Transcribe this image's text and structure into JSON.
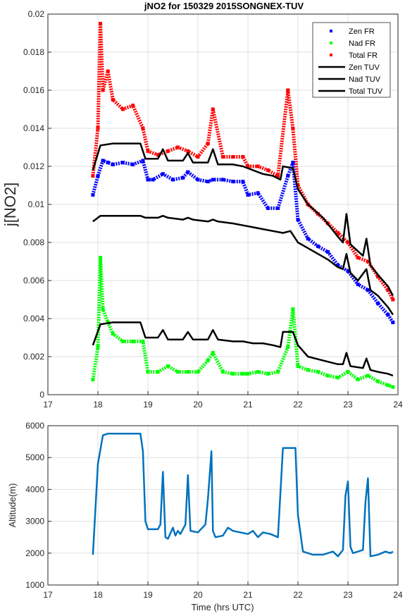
{
  "colors": {
    "zen_fr": "#0000ff",
    "nad_fr": "#00ff00",
    "total_fr": "#ff0000",
    "tuv": "#000000",
    "altitude": "#0072bd",
    "grid": "#dfdfdf",
    "axis": "#262626"
  },
  "chart_data": [
    {
      "type": "scatter",
      "title": "jNO2 for 150329 2015SONGNEX-TUV",
      "xlabel": "",
      "ylabel": "j[NO2]",
      "xlim": [
        17,
        24
      ],
      "ylim": [
        0,
        0.02
      ],
      "x_ticks": [
        "17",
        "18",
        "19",
        "20",
        "21",
        "22",
        "23",
        "24"
      ],
      "y_ticks": [
        "0",
        "0.002",
        "0.004",
        "0.006",
        "0.008",
        "0.01",
        "0.012",
        "0.014",
        "0.016",
        "0.018",
        "0.02"
      ],
      "grid": true,
      "legend_position": "top-right",
      "legend": [
        "Zen FR",
        "Nad FR",
        "Total FR",
        "Zen TUV",
        "Nad TUV",
        "Total TUV"
      ],
      "series": [
        {
          "name": "Zen FR",
          "kind": "points",
          "x": [
            17.9,
            18.0,
            18.1,
            18.2,
            18.3,
            18.5,
            18.7,
            18.9,
            19.0,
            19.1,
            19.3,
            19.5,
            19.7,
            19.8,
            20.0,
            20.2,
            20.3,
            20.5,
            20.7,
            20.9,
            21.0,
            21.2,
            21.4,
            21.6,
            21.8,
            21.9,
            22.0,
            22.2,
            22.4,
            22.6,
            22.8,
            23.0,
            23.2,
            23.4,
            23.6,
            23.8,
            23.9
          ],
          "y": [
            0.0105,
            0.0115,
            0.0123,
            0.0122,
            0.0121,
            0.0122,
            0.0121,
            0.0123,
            0.0113,
            0.0113,
            0.0116,
            0.0113,
            0.0114,
            0.0117,
            0.0113,
            0.0112,
            0.0113,
            0.0113,
            0.0112,
            0.0112,
            0.0105,
            0.0106,
            0.0098,
            0.0098,
            0.0115,
            0.0122,
            0.0092,
            0.0082,
            0.0078,
            0.0075,
            0.0068,
            0.0065,
            0.0058,
            0.0055,
            0.0048,
            0.0042,
            0.0038
          ]
        },
        {
          "name": "Nad FR",
          "kind": "points",
          "x": [
            17.9,
            18.0,
            18.05,
            18.1,
            18.2,
            18.3,
            18.5,
            18.7,
            18.9,
            19.0,
            19.2,
            19.4,
            19.6,
            19.8,
            20.0,
            20.2,
            20.3,
            20.5,
            20.7,
            20.9,
            21.0,
            21.2,
            21.4,
            21.6,
            21.8,
            21.9,
            22.0,
            22.2,
            22.4,
            22.6,
            22.8,
            23.0,
            23.2,
            23.4,
            23.6,
            23.8,
            23.9
          ],
          "y": [
            0.0008,
            0.0025,
            0.0072,
            0.0045,
            0.0038,
            0.0032,
            0.0028,
            0.0028,
            0.0028,
            0.0012,
            0.0012,
            0.0015,
            0.0012,
            0.0012,
            0.0012,
            0.0018,
            0.0022,
            0.0012,
            0.0011,
            0.0011,
            0.0011,
            0.0012,
            0.0011,
            0.0012,
            0.0025,
            0.0045,
            0.0015,
            0.0013,
            0.0012,
            0.001,
            0.0009,
            0.0012,
            0.0008,
            0.001,
            0.0007,
            0.0005,
            0.0004
          ]
        },
        {
          "name": "Total FR",
          "kind": "points",
          "x": [
            17.9,
            18.0,
            18.05,
            18.1,
            18.2,
            18.3,
            18.5,
            18.7,
            18.9,
            19.0,
            19.2,
            19.4,
            19.6,
            19.8,
            20.0,
            20.2,
            20.3,
            20.5,
            20.7,
            20.9,
            21.0,
            21.2,
            21.4,
            21.6,
            21.8,
            21.9,
            22.0,
            22.2,
            22.4,
            22.6,
            22.8,
            23.0,
            23.2,
            23.4,
            23.6,
            23.8,
            23.9
          ],
          "y": [
            0.0115,
            0.014,
            0.0195,
            0.016,
            0.017,
            0.0155,
            0.015,
            0.0152,
            0.014,
            0.0128,
            0.0126,
            0.0128,
            0.013,
            0.0128,
            0.0125,
            0.0132,
            0.015,
            0.0125,
            0.0125,
            0.0125,
            0.012,
            0.012,
            0.0118,
            0.0115,
            0.016,
            0.014,
            0.011,
            0.01,
            0.0095,
            0.009,
            0.0085,
            0.008,
            0.0072,
            0.007,
            0.0062,
            0.0055,
            0.005
          ]
        },
        {
          "name": "Zen TUV",
          "kind": "line",
          "x": [
            17.9,
            18.05,
            18.3,
            18.7,
            18.85,
            18.95,
            19.2,
            19.3,
            19.4,
            19.7,
            19.8,
            19.9,
            20.2,
            20.3,
            20.4,
            20.7,
            20.9,
            21.1,
            21.3,
            21.5,
            21.7,
            21.85,
            22.0,
            22.2,
            22.4,
            22.6,
            22.8,
            22.9,
            22.97,
            23.05,
            23.2,
            23.37,
            23.45,
            23.6,
            23.8,
            23.9
          ],
          "y": [
            0.0091,
            0.0094,
            0.0094,
            0.0094,
            0.0094,
            0.0093,
            0.0093,
            0.0094,
            0.0093,
            0.0092,
            0.0093,
            0.0092,
            0.0091,
            0.0092,
            0.0091,
            0.009,
            0.0089,
            0.0088,
            0.0087,
            0.0086,
            0.0085,
            0.0086,
            0.008,
            0.0077,
            0.0074,
            0.0071,
            0.0067,
            0.0066,
            0.0074,
            0.0064,
            0.006,
            0.0066,
            0.0055,
            0.0052,
            0.0046,
            0.0042
          ]
        },
        {
          "name": "Nad TUV",
          "kind": "line",
          "x": [
            17.9,
            18.05,
            18.3,
            18.85,
            18.95,
            19.2,
            19.3,
            19.4,
            19.7,
            19.8,
            19.9,
            20.2,
            20.3,
            20.4,
            20.7,
            20.9,
            21.1,
            21.3,
            21.5,
            21.65,
            21.7,
            21.9,
            22.0,
            22.2,
            22.5,
            22.8,
            22.9,
            22.97,
            23.05,
            23.3,
            23.37,
            23.45,
            23.6,
            23.8,
            23.9
          ],
          "y": [
            0.0026,
            0.0037,
            0.0038,
            0.0038,
            0.003,
            0.003,
            0.0034,
            0.0029,
            0.0029,
            0.0033,
            0.0029,
            0.0029,
            0.0034,
            0.0029,
            0.0028,
            0.0028,
            0.0027,
            0.0027,
            0.0026,
            0.0025,
            0.0033,
            0.0033,
            0.0026,
            0.002,
            0.0018,
            0.0016,
            0.0016,
            0.0022,
            0.0015,
            0.0014,
            0.0019,
            0.0013,
            0.0012,
            0.0011,
            0.001
          ]
        },
        {
          "name": "Total TUV",
          "kind": "line",
          "x": [
            17.9,
            18.05,
            18.3,
            18.85,
            18.95,
            19.2,
            19.3,
            19.4,
            19.7,
            19.8,
            19.9,
            20.2,
            20.3,
            20.4,
            20.7,
            20.9,
            21.1,
            21.3,
            21.5,
            21.65,
            21.7,
            21.9,
            22.0,
            22.2,
            22.5,
            22.8,
            22.9,
            22.97,
            23.05,
            23.3,
            23.37,
            23.45,
            23.6,
            23.8,
            23.9
          ],
          "y": [
            0.0118,
            0.0131,
            0.0132,
            0.0132,
            0.0124,
            0.0124,
            0.0129,
            0.0123,
            0.0123,
            0.0127,
            0.0122,
            0.0122,
            0.0129,
            0.0121,
            0.0121,
            0.012,
            0.0118,
            0.0116,
            0.0115,
            0.0113,
            0.012,
            0.0119,
            0.0108,
            0.01,
            0.0093,
            0.0083,
            0.008,
            0.0095,
            0.0079,
            0.0073,
            0.0082,
            0.0068,
            0.0063,
            0.0057,
            0.0052
          ]
        }
      ]
    },
    {
      "type": "line",
      "title": "",
      "xlabel": "Time (hrs UTC)",
      "ylabel": "Altitude(m)",
      "xlim": [
        17,
        24
      ],
      "ylim": [
        1000,
        6000
      ],
      "x_ticks": [
        "17",
        "18",
        "19",
        "20",
        "21",
        "22",
        "23",
        "24"
      ],
      "y_ticks": [
        "1000",
        "2000",
        "3000",
        "4000",
        "5000",
        "6000"
      ],
      "grid": true,
      "series": [
        {
          "x": [
            17.9,
            18.0,
            18.1,
            18.2,
            18.85,
            18.9,
            18.95,
            19.0,
            19.2,
            19.25,
            19.3,
            19.35,
            19.4,
            19.5,
            19.55,
            19.6,
            19.65,
            19.75,
            19.8,
            19.85,
            20.0,
            20.15,
            20.2,
            20.27,
            20.3,
            20.35,
            20.5,
            20.6,
            20.7,
            20.85,
            21.0,
            21.1,
            21.2,
            21.3,
            21.45,
            21.6,
            21.7,
            21.75,
            21.95,
            22.0,
            22.1,
            22.3,
            22.5,
            22.7,
            22.8,
            22.9,
            22.95,
            23.0,
            23.05,
            23.1,
            23.3,
            23.35,
            23.4,
            23.45,
            23.6,
            23.75,
            23.85,
            23.9
          ],
          "y": [
            1950,
            4800,
            5700,
            5750,
            5750,
            5200,
            3000,
            2750,
            2750,
            2900,
            4550,
            2500,
            2450,
            2800,
            2550,
            2700,
            2600,
            2900,
            4450,
            2700,
            2650,
            2900,
            3700,
            5200,
            2700,
            2500,
            2550,
            2800,
            2700,
            2650,
            2600,
            2700,
            2500,
            2650,
            2600,
            2500,
            5300,
            5300,
            5300,
            3200,
            2050,
            1950,
            1950,
            2050,
            1900,
            2100,
            3800,
            4250,
            2200,
            2000,
            2100,
            3600,
            4350,
            1900,
            1950,
            2050,
            2000,
            2050
          ]
        }
      ]
    }
  ]
}
